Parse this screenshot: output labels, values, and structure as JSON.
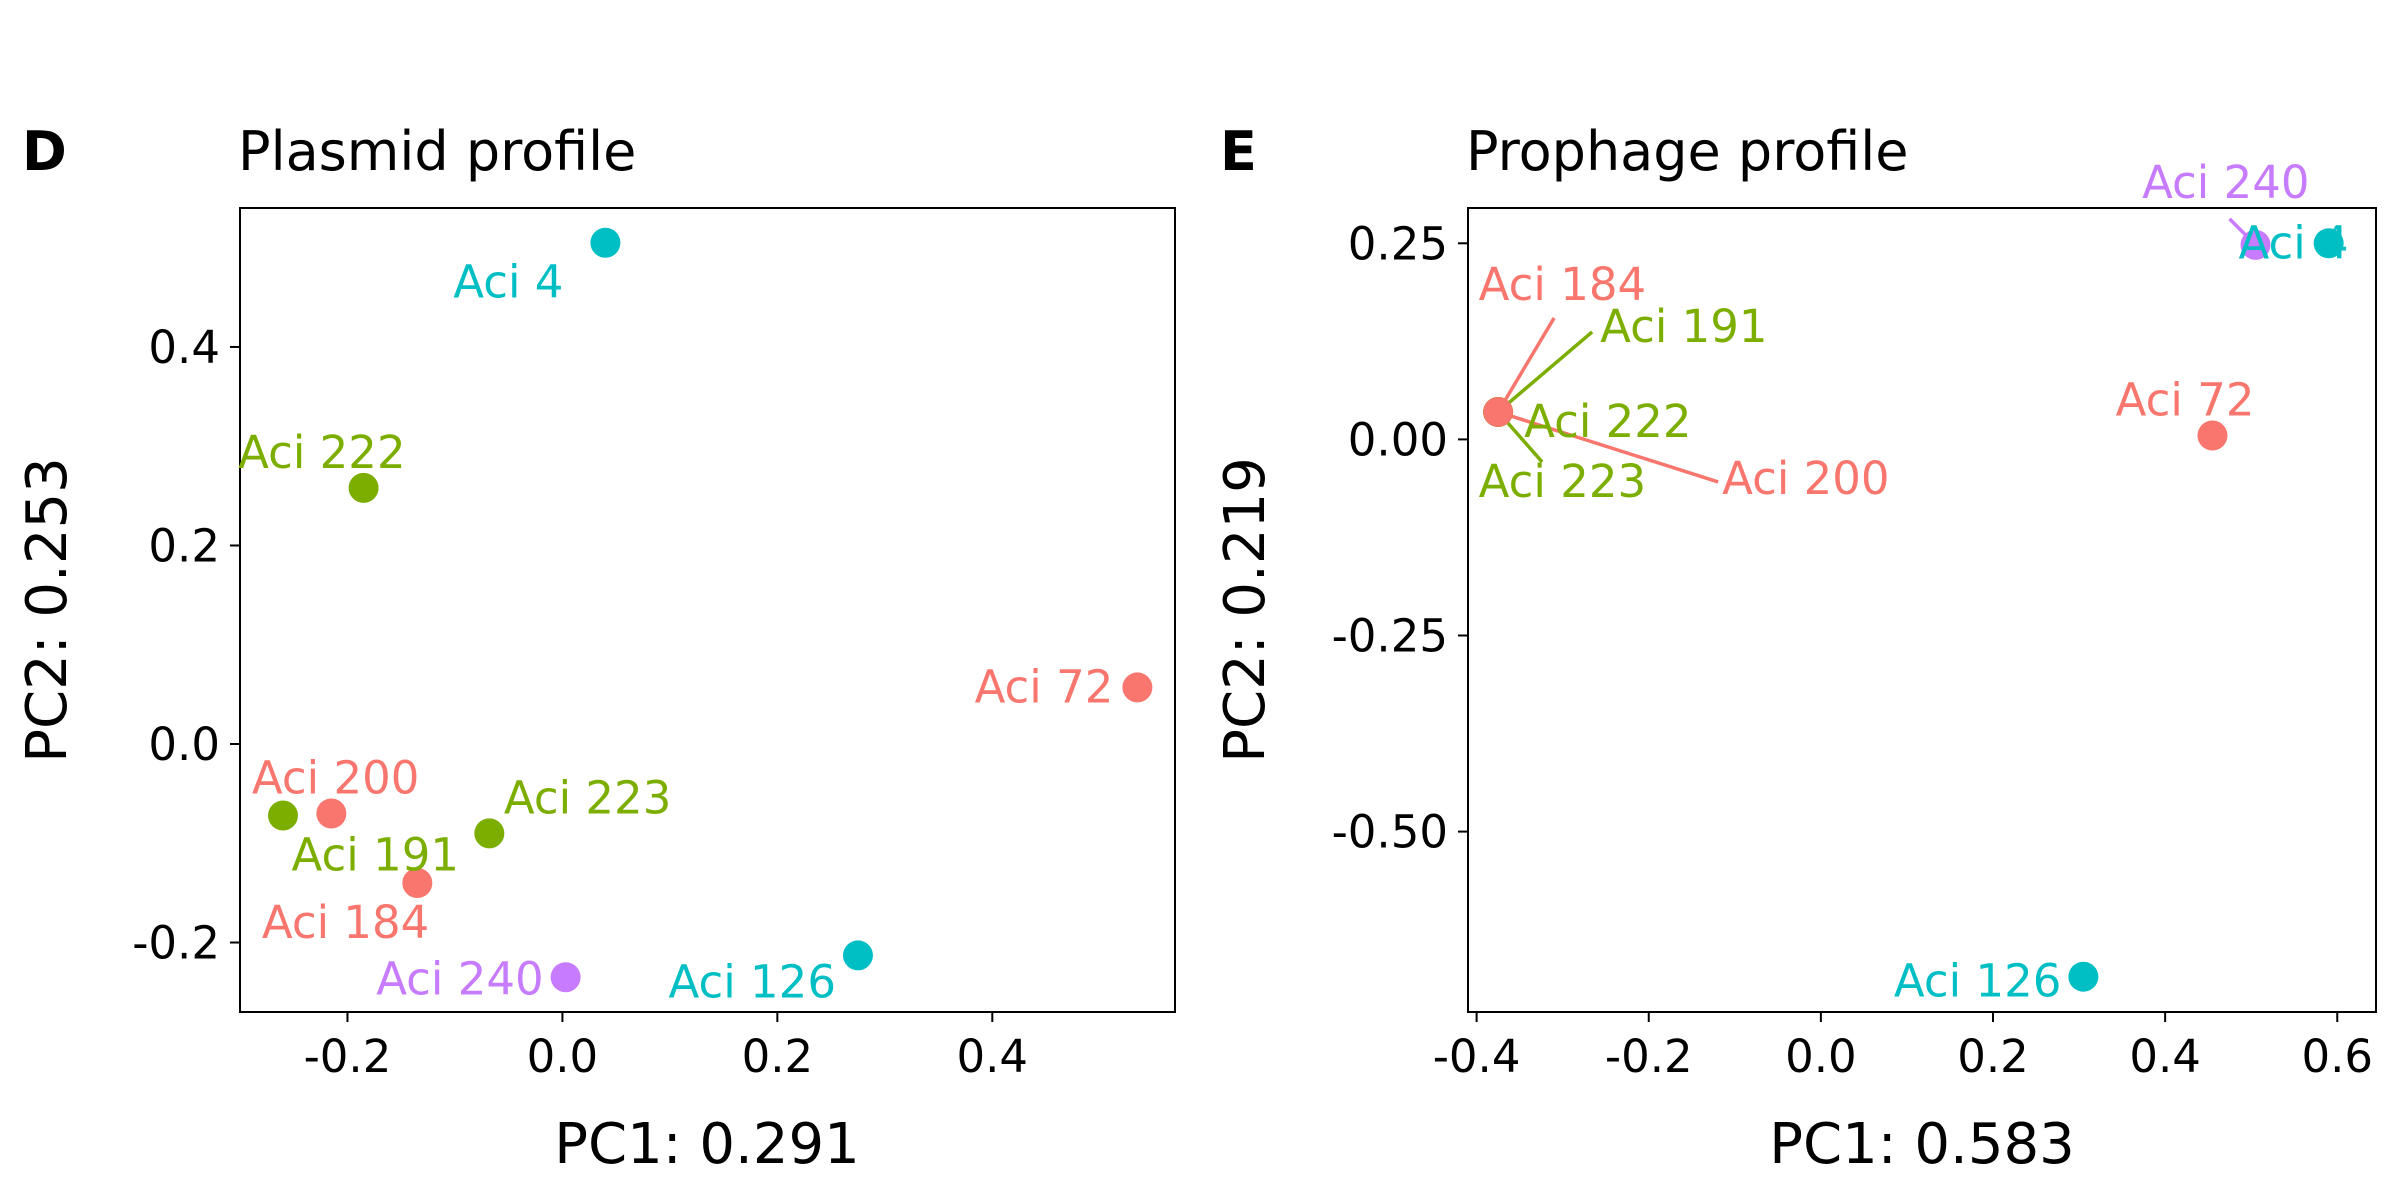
{
  "figure": {
    "panels": [
      {
        "letter": "D",
        "title": "Plasmid profile",
        "xlabel": "PC1: 0.291",
        "ylabel": "PC2: 0.253"
      },
      {
        "letter": "E",
        "title": "Prophage profile",
        "xlabel": "PC1: 0.583",
        "ylabel": "PC2: 0.219"
      }
    ]
  },
  "colors": {
    "salmon": "#F8766D",
    "olive": "#7CAE00",
    "cyan": "#00BFC4",
    "violet": "#C77CFF"
  },
  "chart_data": [
    {
      "type": "scatter",
      "title": "Plasmid profile",
      "xlabel": "PC1: 0.291",
      "ylabel": "PC2: 0.253",
      "xlim": [
        -0.3,
        0.57
      ],
      "ylim": [
        -0.27,
        0.54
      ],
      "xticks": [
        -0.2,
        0.0,
        0.2,
        0.4
      ],
      "xtick_labels": [
        "-0.2",
        "0.0",
        "0.2",
        "0.4"
      ],
      "yticks": [
        -0.2,
        0.0,
        0.2,
        0.4
      ],
      "ytick_labels": [
        "-0.2",
        "0.0",
        "0.2",
        "0.4"
      ],
      "grid": false,
      "legend": "none",
      "points": [
        {
          "label": "Aci 4",
          "x": 0.04,
          "y": 0.505,
          "color": "cyan"
        },
        {
          "label": "Aci 222",
          "x": -0.185,
          "y": 0.258,
          "color": "olive"
        },
        {
          "label": "Aci 72",
          "x": 0.535,
          "y": 0.057,
          "color": "salmon"
        },
        {
          "label": "Aci 200",
          "x": -0.215,
          "y": -0.07,
          "color": "salmon"
        },
        {
          "label": "Aci 191",
          "x": -0.26,
          "y": -0.072,
          "color": "olive"
        },
        {
          "label": "Aci 223",
          "x": -0.068,
          "y": -0.09,
          "color": "olive"
        },
        {
          "label": "Aci 184",
          "x": -0.135,
          "y": -0.14,
          "color": "salmon"
        },
        {
          "label": "Aci 240",
          "x": 0.003,
          "y": -0.235,
          "color": "violet"
        },
        {
          "label": "Aci 126",
          "x": 0.275,
          "y": -0.213,
          "color": "cyan"
        }
      ]
    },
    {
      "type": "scatter",
      "title": "Prophage profile",
      "xlabel": "PC1: 0.583",
      "ylabel": "PC2: 0.219",
      "xlim": [
        -0.41,
        0.645
      ],
      "ylim": [
        -0.73,
        0.295
      ],
      "xticks": [
        -0.4,
        -0.2,
        0.0,
        0.2,
        0.4,
        0.6
      ],
      "xtick_labels": [
        "-0.4",
        "-0.2",
        "0.0",
        "0.2",
        "0.4",
        "0.6"
      ],
      "yticks": [
        0.25,
        0.0,
        -0.25,
        -0.5
      ],
      "ytick_labels": [
        "0.25",
        "0.00",
        "-0.25",
        "-0.50"
      ],
      "grid": false,
      "legend": "none",
      "points": [
        {
          "label": "Aci 4",
          "x": 0.59,
          "y": 0.25,
          "color": "cyan"
        },
        {
          "label": "Aci 240",
          "x": 0.505,
          "y": 0.248,
          "color": "violet"
        },
        {
          "label": "Aci 72",
          "x": 0.455,
          "y": 0.005,
          "color": "salmon"
        },
        {
          "label": "Aci 184",
          "x": -0.375,
          "y": 0.035,
          "color": "salmon"
        },
        {
          "label": "Aci 191",
          "x": -0.375,
          "y": 0.035,
          "color": "olive"
        },
        {
          "label": "Aci 222",
          "x": -0.375,
          "y": 0.035,
          "color": "olive"
        },
        {
          "label": "Aci 223",
          "x": -0.375,
          "y": 0.035,
          "color": "olive"
        },
        {
          "label": "Aci 200",
          "x": -0.375,
          "y": 0.035,
          "color": "salmon"
        },
        {
          "label": "Aci 126",
          "x": 0.305,
          "y": -0.685,
          "color": "cyan"
        }
      ]
    }
  ]
}
